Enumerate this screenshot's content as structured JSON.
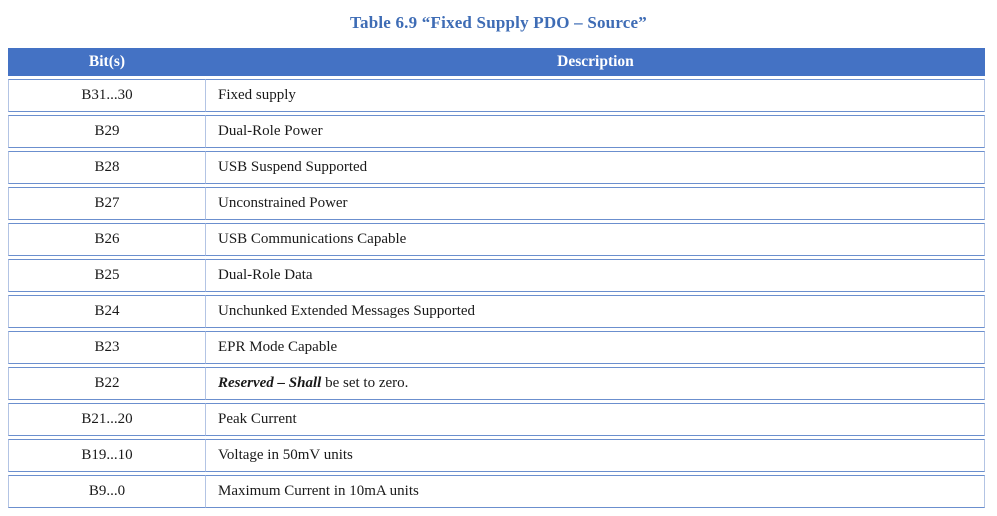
{
  "caption": "Table 6.9 “Fixed Supply PDO – Source”",
  "colors": {
    "header_bg": "#4472C4",
    "header_text": "#FFFFFF",
    "row_border": "#6B8FCE",
    "outer_border": "#B3C4E4",
    "caption_text": "#3E6CB5"
  },
  "table": {
    "headers": [
      "Bit(s)",
      "Description"
    ],
    "rows": [
      {
        "bits": "B31...30",
        "desc": [
          {
            "t": "Fixed supply",
            "b": false
          }
        ]
      },
      {
        "bits": "B29",
        "desc": [
          {
            "t": "Dual-Role Power",
            "b": false
          }
        ]
      },
      {
        "bits": "B28",
        "desc": [
          {
            "t": "USB Suspend Supported",
            "b": false
          }
        ]
      },
      {
        "bits": "B27",
        "desc": [
          {
            "t": "Unconstrained Power",
            "b": false
          }
        ]
      },
      {
        "bits": "B26",
        "desc": [
          {
            "t": "USB Communications Capable",
            "b": false
          }
        ]
      },
      {
        "bits": "B25",
        "desc": [
          {
            "t": "Dual-Role Data",
            "b": false
          }
        ]
      },
      {
        "bits": "B24",
        "desc": [
          {
            "t": "Unchunked Extended Messages Supported",
            "b": false
          }
        ]
      },
      {
        "bits": "B23",
        "desc": [
          {
            "t": "EPR Mode Capable",
            "b": false
          }
        ]
      },
      {
        "bits": "B22",
        "desc": [
          {
            "t": "Reserved – Shall",
            "b": true
          },
          {
            "t": " be set to zero.",
            "b": false
          }
        ]
      },
      {
        "bits": "B21...20",
        "desc": [
          {
            "t": "Peak Current",
            "b": false
          }
        ]
      },
      {
        "bits": "B19...10",
        "desc": [
          {
            "t": "Voltage in 50mV units",
            "b": false
          }
        ]
      },
      {
        "bits": "B9...0",
        "desc": [
          {
            "t": "Maximum Current in 10mA units",
            "b": false
          }
        ]
      }
    ]
  }
}
